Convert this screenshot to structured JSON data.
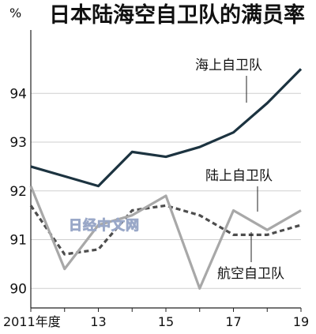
{
  "watermark": "日经中文网",
  "chart_data": {
    "type": "line",
    "title": "日本陆海空自卫队的满员率",
    "ylabel": "%",
    "ylim": [
      89.6,
      95.3
    ],
    "xlim": [
      2011,
      2019
    ],
    "yticks": [
      90,
      91,
      92,
      93,
      94
    ],
    "xticks": [
      {
        "x": 2011,
        "label": "2011年度"
      },
      {
        "x": 2013,
        "label": "13"
      },
      {
        "x": 2015,
        "label": "15"
      },
      {
        "x": 2017,
        "label": "17"
      },
      {
        "x": 2019,
        "label": "19"
      }
    ],
    "x": [
      2011,
      2012,
      2013,
      2014,
      2015,
      2016,
      2017,
      2018,
      2019
    ],
    "series": [
      {
        "name": "海上自卫队",
        "color": "#1c3340",
        "style": "solid",
        "values": [
          92.5,
          92.3,
          92.1,
          92.8,
          92.7,
          92.9,
          93.2,
          93.8,
          94.5
        ]
      },
      {
        "name": "陆上自卫队",
        "color": "#4d4d4d",
        "style": "dashed",
        "values": [
          91.7,
          90.7,
          90.8,
          91.6,
          91.7,
          91.5,
          91.1,
          91.1,
          91.3
        ]
      },
      {
        "name": "航空自卫队",
        "color": "#a8a8a8",
        "style": "solid",
        "values": [
          92.1,
          90.4,
          91.3,
          91.5,
          91.9,
          90.0,
          91.6,
          91.2,
          91.6
        ]
      }
    ],
    "legend": "inline labels"
  }
}
